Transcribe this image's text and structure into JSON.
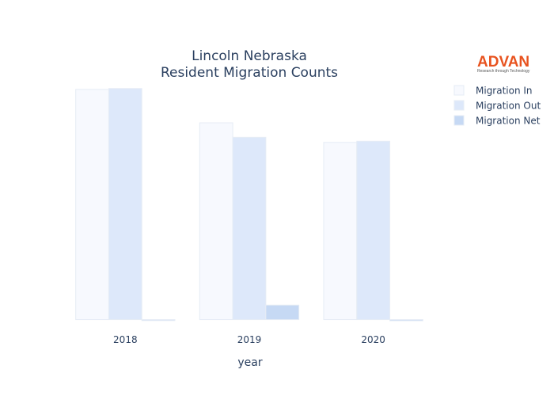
{
  "logo": {
    "name": "ADVAN",
    "tagline": "Research through Technology"
  },
  "chart_data": {
    "type": "bar",
    "title": [
      "Lincoln Nebraska",
      "Resident Migration Counts"
    ],
    "xlabel": "year",
    "ylabel": "",
    "categories": [
      "2018",
      "2019",
      "2020"
    ],
    "series": [
      {
        "name": "Migration In",
        "values": [
          1000,
          855,
          770
        ],
        "color": "#f7f9fe"
      },
      {
        "name": "Migration Out",
        "values": [
          1004,
          792,
          775
        ],
        "color": "#dde8fa"
      },
      {
        "name": "Migration Net",
        "values": [
          -4,
          63,
          -5
        ],
        "color": "#c6d9f4"
      }
    ],
    "ylim": [
      -5,
      1010
    ],
    "grid": false,
    "y_tick_labels_shown": false,
    "legend": "top-right"
  }
}
